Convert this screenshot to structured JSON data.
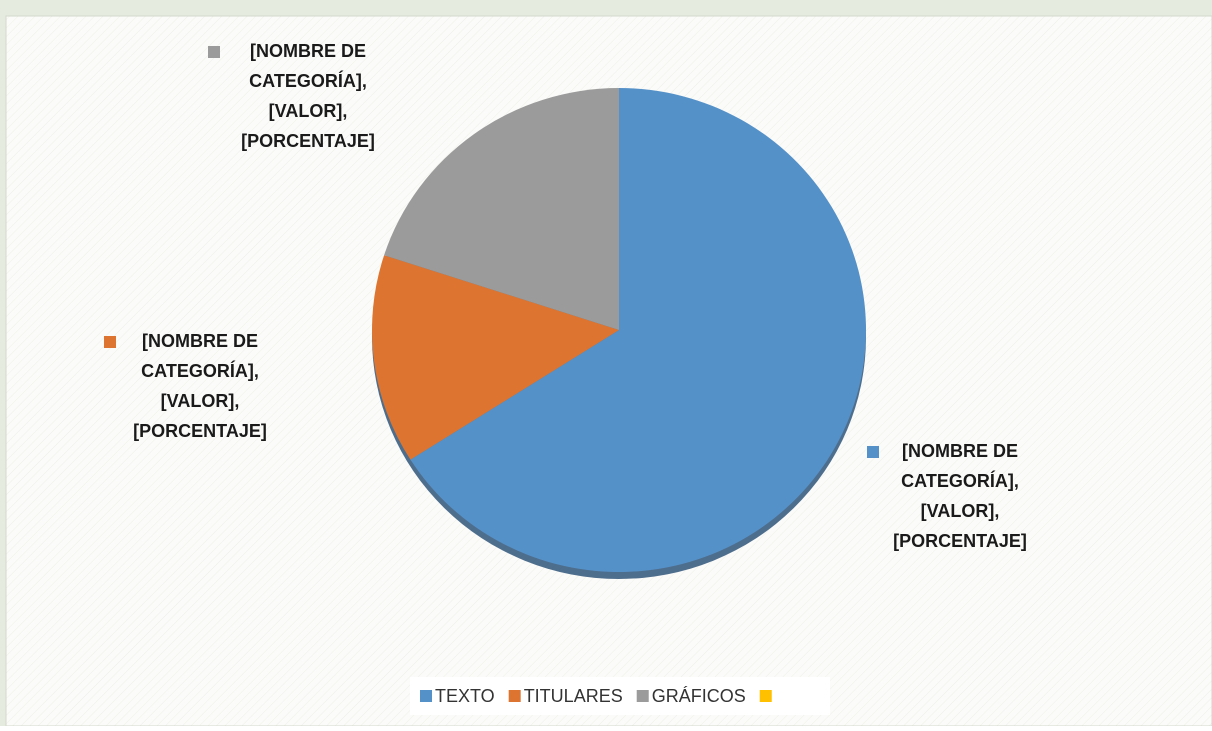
{
  "chart_data": {
    "type": "pie",
    "categories": [
      "TEXTO",
      "TITULARES",
      "GRÁFICOS",
      null
    ],
    "values": [
      66,
      14,
      20,
      0
    ],
    "colors": [
      "#5591c9",
      "#dd7531",
      "#9b9b9b",
      "#ffc000"
    ],
    "value_labels": [
      [
        "[NOMBRE DE",
        "CATEGORÍA],",
        "[VALOR],",
        "[PORCENTAJE]"
      ],
      [
        "[NOMBRE DE",
        "CATEGORÍA],",
        "[VALOR],",
        "[PORCENTAJE]"
      ],
      [
        "[NOMBRE DE",
        "CATEGORÍA],",
        "[VALOR],",
        "[PORCENTAJE]"
      ],
      null
    ],
    "legend": "bottom"
  }
}
